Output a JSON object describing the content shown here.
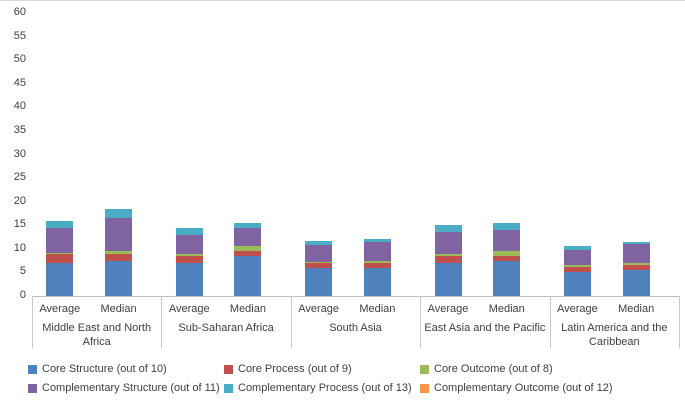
{
  "chart_data": {
    "type": "bar",
    "stacked": true,
    "title": "",
    "xlabel": "",
    "ylabel": "",
    "ylim": [
      0,
      60
    ],
    "ytick_step": 5,
    "grid": false,
    "legend_position": "bottom",
    "series": [
      {
        "name": "Core Structure (out of 10)",
        "color": "#4f81bd"
      },
      {
        "name": "Core Process (out of 9)",
        "color": "#c0504d"
      },
      {
        "name": "Core Outcome (out of 8)",
        "color": "#9bbb59"
      },
      {
        "name": "Complementary Structure (out of 11)",
        "color": "#8064a2"
      },
      {
        "name": "Complementary Process (out of 13)",
        "color": "#4bacc6"
      },
      {
        "name": "Complementary Outcome (out of 12)",
        "color": "#f79646"
      }
    ],
    "groups": [
      {
        "region": "Middle East and North Africa",
        "bars": [
          {
            "label": "Average",
            "values": [
              7.0,
              1.8,
              0.4,
              5.3,
              1.3,
              0
            ]
          },
          {
            "label": "Median",
            "values": [
              7.5,
              1.5,
              0.5,
              7.0,
              2.0,
              0
            ]
          }
        ]
      },
      {
        "region": "Sub-Saharan Africa",
        "bars": [
          {
            "label": "Average",
            "values": [
              7.0,
              1.5,
              0.5,
              4.0,
              1.5,
              0
            ]
          },
          {
            "label": "Median",
            "values": [
              8.5,
              1.0,
              1.0,
              4.0,
              1.0,
              0
            ]
          }
        ]
      },
      {
        "region": "South Asia",
        "bars": [
          {
            "label": "Average",
            "values": [
              6.0,
              1.0,
              0.3,
              3.6,
              0.8,
              0
            ]
          },
          {
            "label": "Median",
            "values": [
              6.0,
              1.0,
              0.5,
              4.0,
              0.5,
              0
            ]
          }
        ]
      },
      {
        "region": "East Asia and the Pacific",
        "bars": [
          {
            "label": "Average",
            "values": [
              7.0,
              1.5,
              0.5,
              4.5,
              1.5,
              0
            ]
          },
          {
            "label": "Median",
            "values": [
              7.5,
              1.0,
              1.0,
              4.5,
              1.5,
              0
            ]
          }
        ]
      },
      {
        "region": "Latin America and the Caribbean",
        "bars": [
          {
            "label": "Average",
            "values": [
              5.0,
              1.2,
              0.3,
              3.2,
              0.8,
              0
            ]
          },
          {
            "label": "Median",
            "values": [
              5.5,
              1.0,
              0.5,
              4.0,
              0.5,
              0
            ]
          }
        ]
      }
    ]
  }
}
